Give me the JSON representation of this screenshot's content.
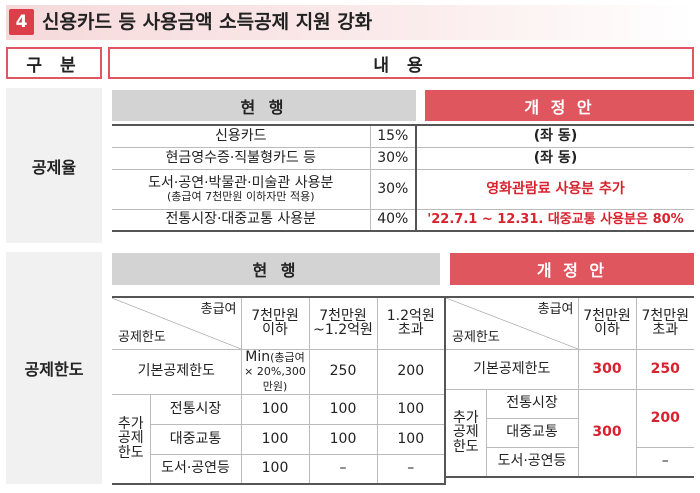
{
  "header": {
    "number": "4",
    "title": "신용카드 등 사용금액 소득공제 지원 강화"
  },
  "columns": {
    "category": "구 분",
    "content": "내 용"
  },
  "rate": {
    "label": "공제율",
    "current": "현 행",
    "revised": "개 정 안",
    "rows": [
      {
        "item": "신용카드",
        "sub": "",
        "rate": "15%",
        "revised": "(좌 동)",
        "highlight": false
      },
      {
        "item": "현금영수증·직불형카드 등",
        "sub": "",
        "rate": "30%",
        "revised": "(좌 동)",
        "highlight": false
      },
      {
        "item": "도서·공연·박물관·미술관 사용분",
        "sub": "(총급여 7천만원 이하자만 적용)",
        "rate": "30%",
        "revised": "영화관람료 사용분 추가",
        "highlight": true
      },
      {
        "item": "전통시장·대중교통 사용분",
        "sub": "",
        "rate": "40%",
        "revised": "'22.7.1 ~ 12.31. 대중교통 사용분은 80%",
        "highlight": true
      }
    ]
  },
  "limit": {
    "label": "공제한도",
    "current": "현 행",
    "revised": "개 정 안",
    "diag_top": "총급여",
    "diag_bottom": "공제한도",
    "current_table": {
      "col1": "7천만원 이하",
      "col2": "7천만원 ~1.2억원",
      "col3": "1.2억원 초과",
      "base_label": "기본공제한도",
      "base_c1_main": "Min",
      "base_c1_note": "(총급여 × 20%,300만원)",
      "base_c2": "250",
      "base_c3": "200",
      "extra_label": "추가 공제 한도",
      "extra_rows": [
        {
          "name": "전통시장",
          "c1": "100",
          "c2": "100",
          "c3": "100"
        },
        {
          "name": "대중교통",
          "c1": "100",
          "c2": "100",
          "c3": "100"
        },
        {
          "name": "도서·공연등",
          "c1": "100",
          "c2": "–",
          "c3": "–"
        }
      ]
    },
    "revised_table": {
      "col1": "7천만원 이하",
      "col2": "7천만원 초과",
      "base_label": "기본공제한도",
      "base_c1": "300",
      "base_c2": "250",
      "extra_label": "추가 공제 한도",
      "extra_names": [
        "전통시장",
        "대중교통",
        "도서·공연등"
      ],
      "extra_c1": "300",
      "extra_c2_top": "200",
      "extra_c2_bottom": "–"
    }
  }
}
